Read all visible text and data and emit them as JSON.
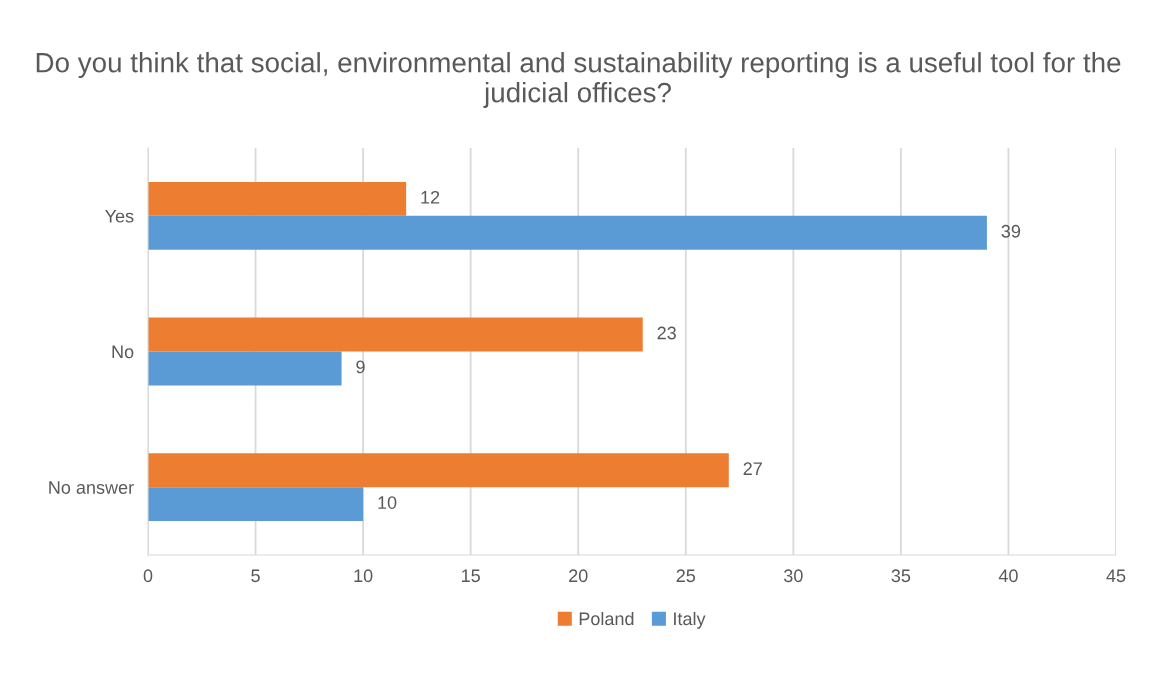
{
  "chart_data": {
    "type": "bar",
    "orientation": "horizontal",
    "title": "Do you think that social, environmental and sustainability reporting is a useful tool for the judicial offices?",
    "categories": [
      "Yes",
      "No",
      "No answer"
    ],
    "series": [
      {
        "name": "Poland",
        "color": "#ed7d31",
        "values": [
          12,
          23,
          27
        ]
      },
      {
        "name": "Italy",
        "color": "#5b9bd5",
        "values": [
          39,
          9,
          10
        ]
      }
    ],
    "xlim": [
      0,
      45
    ],
    "xticks": [
      0,
      5,
      10,
      15,
      20,
      25,
      30,
      35,
      40,
      45
    ],
    "grid": "x",
    "legend": "bottom",
    "data_labels": true
  }
}
